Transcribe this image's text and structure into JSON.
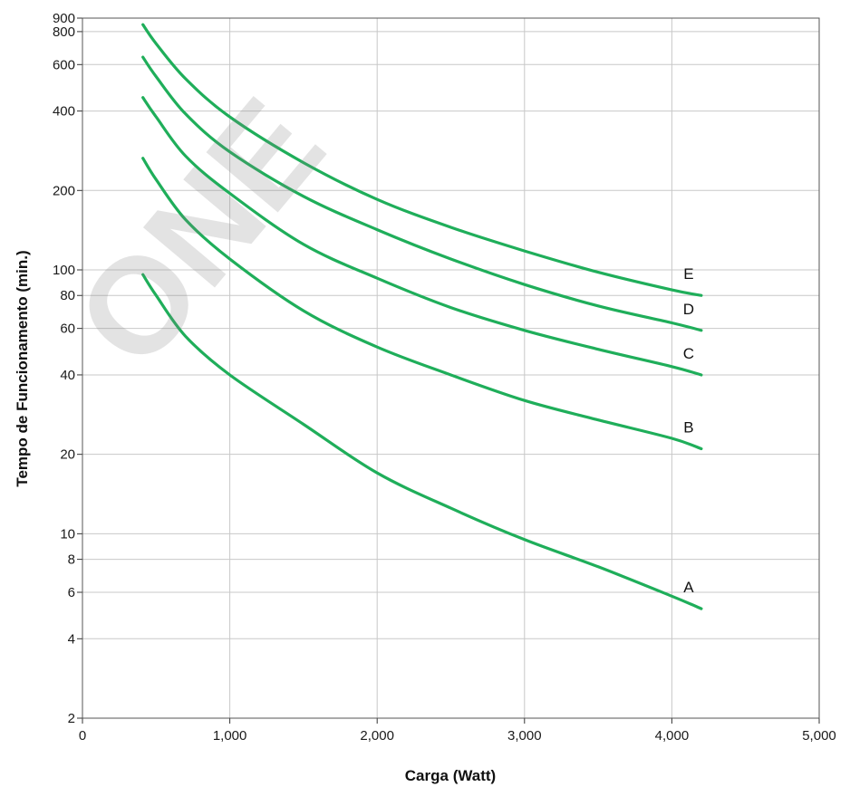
{
  "chart_data": {
    "type": "line",
    "title": "",
    "xlabel": "Carga (Watt)",
    "ylabel": "Tempo de Funcionamento (min.)",
    "xlim": [
      0,
      5000
    ],
    "ylim": [
      2,
      900
    ],
    "y_scale": "log",
    "grid": true,
    "line_color": "#1fae5a",
    "x_ticks": [
      0,
      1000,
      2000,
      3000,
      4000,
      5000
    ],
    "x_tick_labels": [
      "0",
      "1,000",
      "2,000",
      "3,000",
      "4,000",
      "5,000"
    ],
    "y_ticks": [
      2,
      4,
      6,
      8,
      10,
      20,
      40,
      60,
      80,
      100,
      200,
      400,
      600,
      800,
      900
    ],
    "y_tick_labels": [
      "2",
      "4",
      "6",
      "8",
      "10",
      "20",
      "40",
      "60",
      "80",
      "100",
      "200",
      "400",
      "600",
      "800",
      "900"
    ],
    "series": [
      {
        "name": "A",
        "x": [
          410,
          500,
          700,
          1000,
          1500,
          2000,
          2500,
          3000,
          3500,
          4000,
          4200
        ],
        "y": [
          96,
          80,
          56,
          40,
          26,
          17,
          12.5,
          9.5,
          7.5,
          5.8,
          5.2
        ]
      },
      {
        "name": "B",
        "x": [
          410,
          500,
          700,
          1000,
          1500,
          2000,
          2500,
          3000,
          3500,
          4000,
          4200
        ],
        "y": [
          265,
          220,
          155,
          110,
          70,
          51,
          40,
          32,
          27,
          23,
          21
        ]
      },
      {
        "name": "C",
        "x": [
          410,
          500,
          700,
          1000,
          1500,
          2000,
          2500,
          3000,
          3500,
          4000,
          4200
        ],
        "y": [
          450,
          380,
          270,
          195,
          125,
          93,
          72,
          59,
          50,
          43,
          40
        ]
      },
      {
        "name": "D",
        "x": [
          410,
          500,
          700,
          1000,
          1500,
          2000,
          2500,
          3000,
          3500,
          4000,
          4200
        ],
        "y": [
          640,
          540,
          390,
          280,
          190,
          142,
          110,
          88,
          73,
          63,
          59
        ]
      },
      {
        "name": "E",
        "x": [
          410,
          500,
          700,
          1000,
          1500,
          2000,
          2500,
          3000,
          3500,
          4000,
          4200
        ],
        "y": [
          850,
          720,
          530,
          380,
          255,
          185,
          145,
          118,
          98,
          84,
          80
        ]
      }
    ]
  },
  "watermark": {
    "text": "ONE"
  }
}
